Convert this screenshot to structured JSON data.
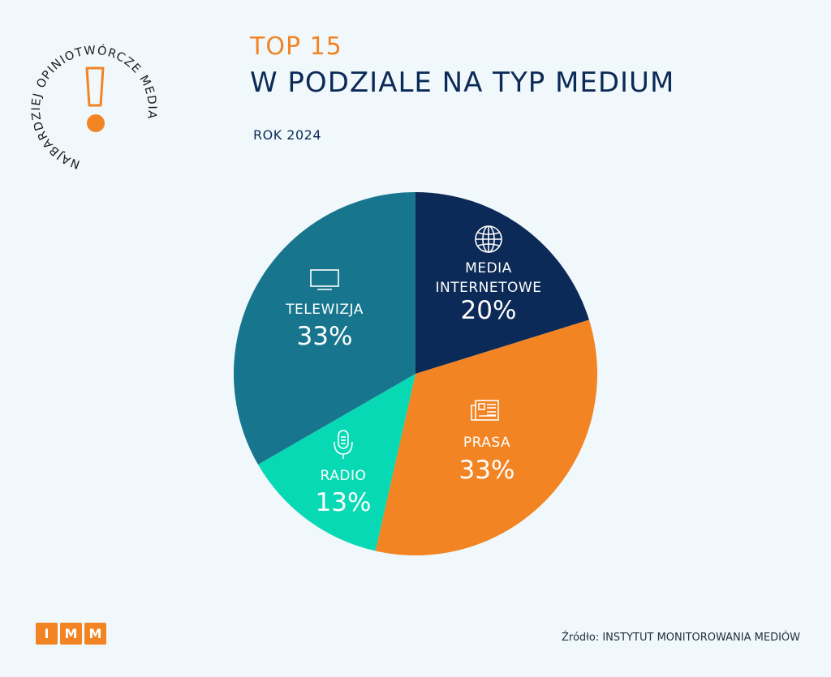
{
  "header": {
    "badge_text": "NAJBARDZIEJ OPINIOTWÓRCZE MEDIA",
    "title_top": "TOP 15",
    "title_main": "W PODZIALE NA TYP MEDIUM",
    "year": "ROK 2024"
  },
  "footer": {
    "logo": [
      "I",
      "M",
      "M"
    ],
    "source": "Źródło: INSTYTUT MONITOROWANIA MEDIÓW"
  },
  "colors": {
    "accent": "#f28423",
    "navy": "#0c2a57",
    "teal": "#17768e",
    "mint": "#08d9b5",
    "background": "#f0f8fb"
  },
  "chart_data": {
    "type": "pie",
    "title": "W PODZIALE NA TYP MEDIUM",
    "slices": [
      {
        "label": "MEDIA INTERNETOWE",
        "label_lines": [
          "MEDIA",
          "INTERNETOWE"
        ],
        "value": 20,
        "display": "20%",
        "color": "#0c2a57",
        "icon": "globe-icon"
      },
      {
        "label": "PRASA",
        "label_lines": [
          "PRASA"
        ],
        "value": 33,
        "display": "33%",
        "color": "#f28423",
        "icon": "newspaper-icon"
      },
      {
        "label": "RADIO",
        "label_lines": [
          "RADIO"
        ],
        "value": 13,
        "display": "13%",
        "color": "#08d9b5",
        "icon": "microphone-icon"
      },
      {
        "label": "TELEWIZJA",
        "label_lines": [
          "TELEWIZJA"
        ],
        "value": 33,
        "display": "33%",
        "color": "#17768e",
        "icon": "tv-icon"
      }
    ]
  }
}
